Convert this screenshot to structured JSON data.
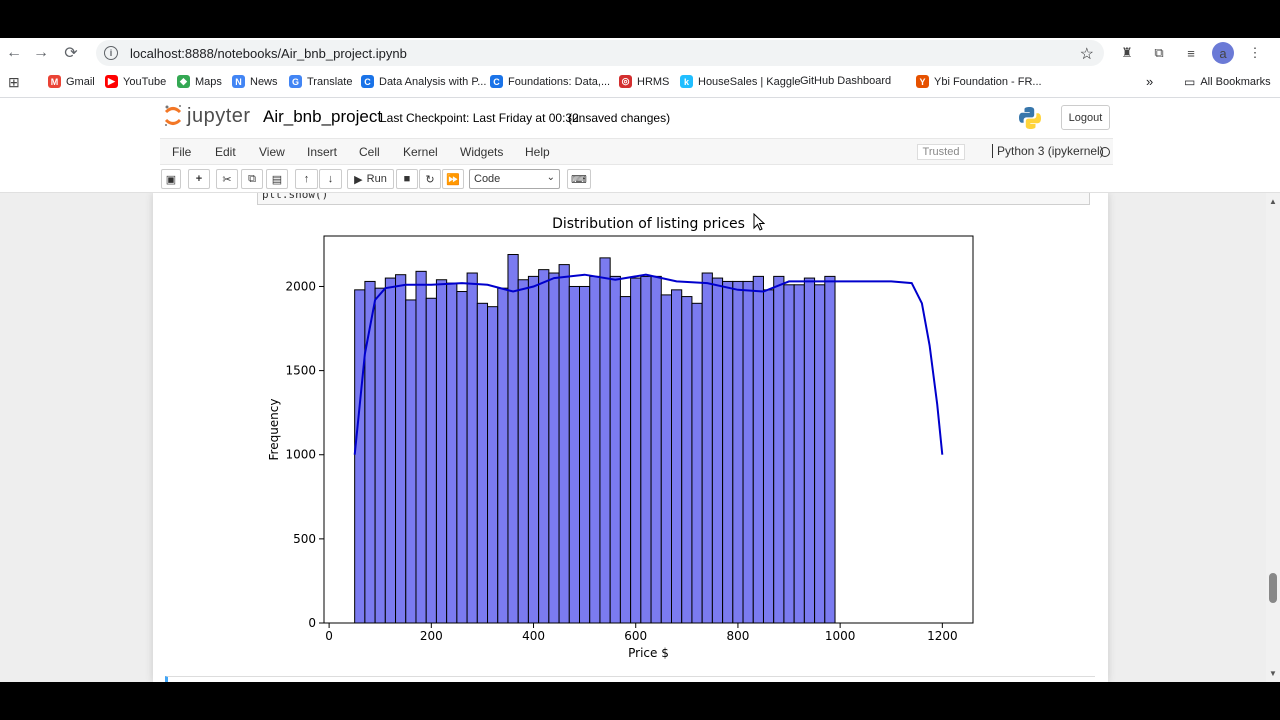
{
  "browser": {
    "url": "localhost:8888/notebooks/Air_bnb_project.ipynb",
    "bookmarks": [
      {
        "label": "Gmail",
        "color": "#ea4335",
        "glyph": "M"
      },
      {
        "label": "YouTube",
        "color": "#ff0000",
        "glyph": "▶"
      },
      {
        "label": "Maps",
        "color": "#34a853",
        "glyph": "◆"
      },
      {
        "label": "News",
        "color": "#4285f4",
        "glyph": "N"
      },
      {
        "label": "Translate",
        "color": "#4285f4",
        "glyph": "G"
      },
      {
        "label": "Data Analysis with P...",
        "color": "#1a73e8",
        "glyph": "C"
      },
      {
        "label": "Foundations: Data,...",
        "color": "#1a73e8",
        "glyph": "C"
      },
      {
        "label": "HRMS",
        "color": "#d32f2f",
        "glyph": "◎"
      },
      {
        "label": "HouseSales | Kaggle",
        "color": "#20beff",
        "glyph": "k"
      },
      {
        "label": "GitHub Dashboard",
        "color": "#ffffff",
        "glyph": ""
      },
      {
        "label": "Ybi Foundation - FR...",
        "color": "#e65100",
        "glyph": "Y"
      }
    ],
    "all_bookmarks": "All Bookmarks",
    "avatar_letter": "a"
  },
  "jupyter": {
    "logo_text": "jupyter",
    "notebook_name": "Air_bnb_project",
    "checkpoint": "Last Checkpoint: Last Friday at 00:32",
    "status": "(unsaved changes)",
    "logout": "Logout",
    "menu": [
      "File",
      "Edit",
      "View",
      "Insert",
      "Cell",
      "Kernel",
      "Widgets",
      "Help"
    ],
    "trusted": "Trusted",
    "kernel": "Python 3 (ipykernel)",
    "run_label": "Run",
    "cell_type": "Code",
    "code_line": "plt.show()"
  },
  "chart_data": {
    "type": "bar",
    "title": "Distribution of listing prices",
    "xlabel": "Price $",
    "ylabel": "Frequency",
    "xlim": [
      -10,
      1260
    ],
    "ylim": [
      0,
      2300
    ],
    "xticks": [
      0,
      200,
      400,
      600,
      800,
      1000,
      1200
    ],
    "yticks": [
      0,
      500,
      1000,
      1500,
      2000
    ],
    "bin_start": 50,
    "bin_width": 20,
    "values": [
      1980,
      2030,
      1990,
      2050,
      2070,
      1920,
      2090,
      1930,
      2040,
      2020,
      1970,
      2080,
      1900,
      1880,
      1990,
      2190,
      2040,
      2060,
      2100,
      2080,
      2130,
      2000,
      2000,
      2060,
      2170,
      2060,
      1940,
      2050,
      2060,
      2060,
      1950,
      1980,
      1940,
      1900,
      2080,
      2050,
      2030,
      2030,
      2030,
      2060,
      1980,
      2060,
      2010,
      2010,
      2050,
      2010,
      2060
    ],
    "kde": [
      [
        50,
        1000
      ],
      [
        70,
        1600
      ],
      [
        90,
        1920
      ],
      [
        110,
        1990
      ],
      [
        150,
        2010
      ],
      [
        200,
        2010
      ],
      [
        260,
        2020
      ],
      [
        310,
        2010
      ],
      [
        360,
        1970
      ],
      [
        400,
        2000
      ],
      [
        440,
        2050
      ],
      [
        500,
        2070
      ],
      [
        560,
        2040
      ],
      [
        620,
        2070
      ],
      [
        680,
        2030
      ],
      [
        740,
        2020
      ],
      [
        800,
        1980
      ],
      [
        850,
        1970
      ],
      [
        900,
        2030
      ],
      [
        960,
        2030
      ],
      [
        1040,
        2030
      ],
      [
        1100,
        2030
      ],
      [
        1140,
        2020
      ],
      [
        1160,
        1900
      ],
      [
        1175,
        1650
      ],
      [
        1190,
        1300
      ],
      [
        1200,
        1000
      ]
    ],
    "bar_color": "#7b7bf0",
    "line_color": "#0000cc",
    "grid": false
  }
}
